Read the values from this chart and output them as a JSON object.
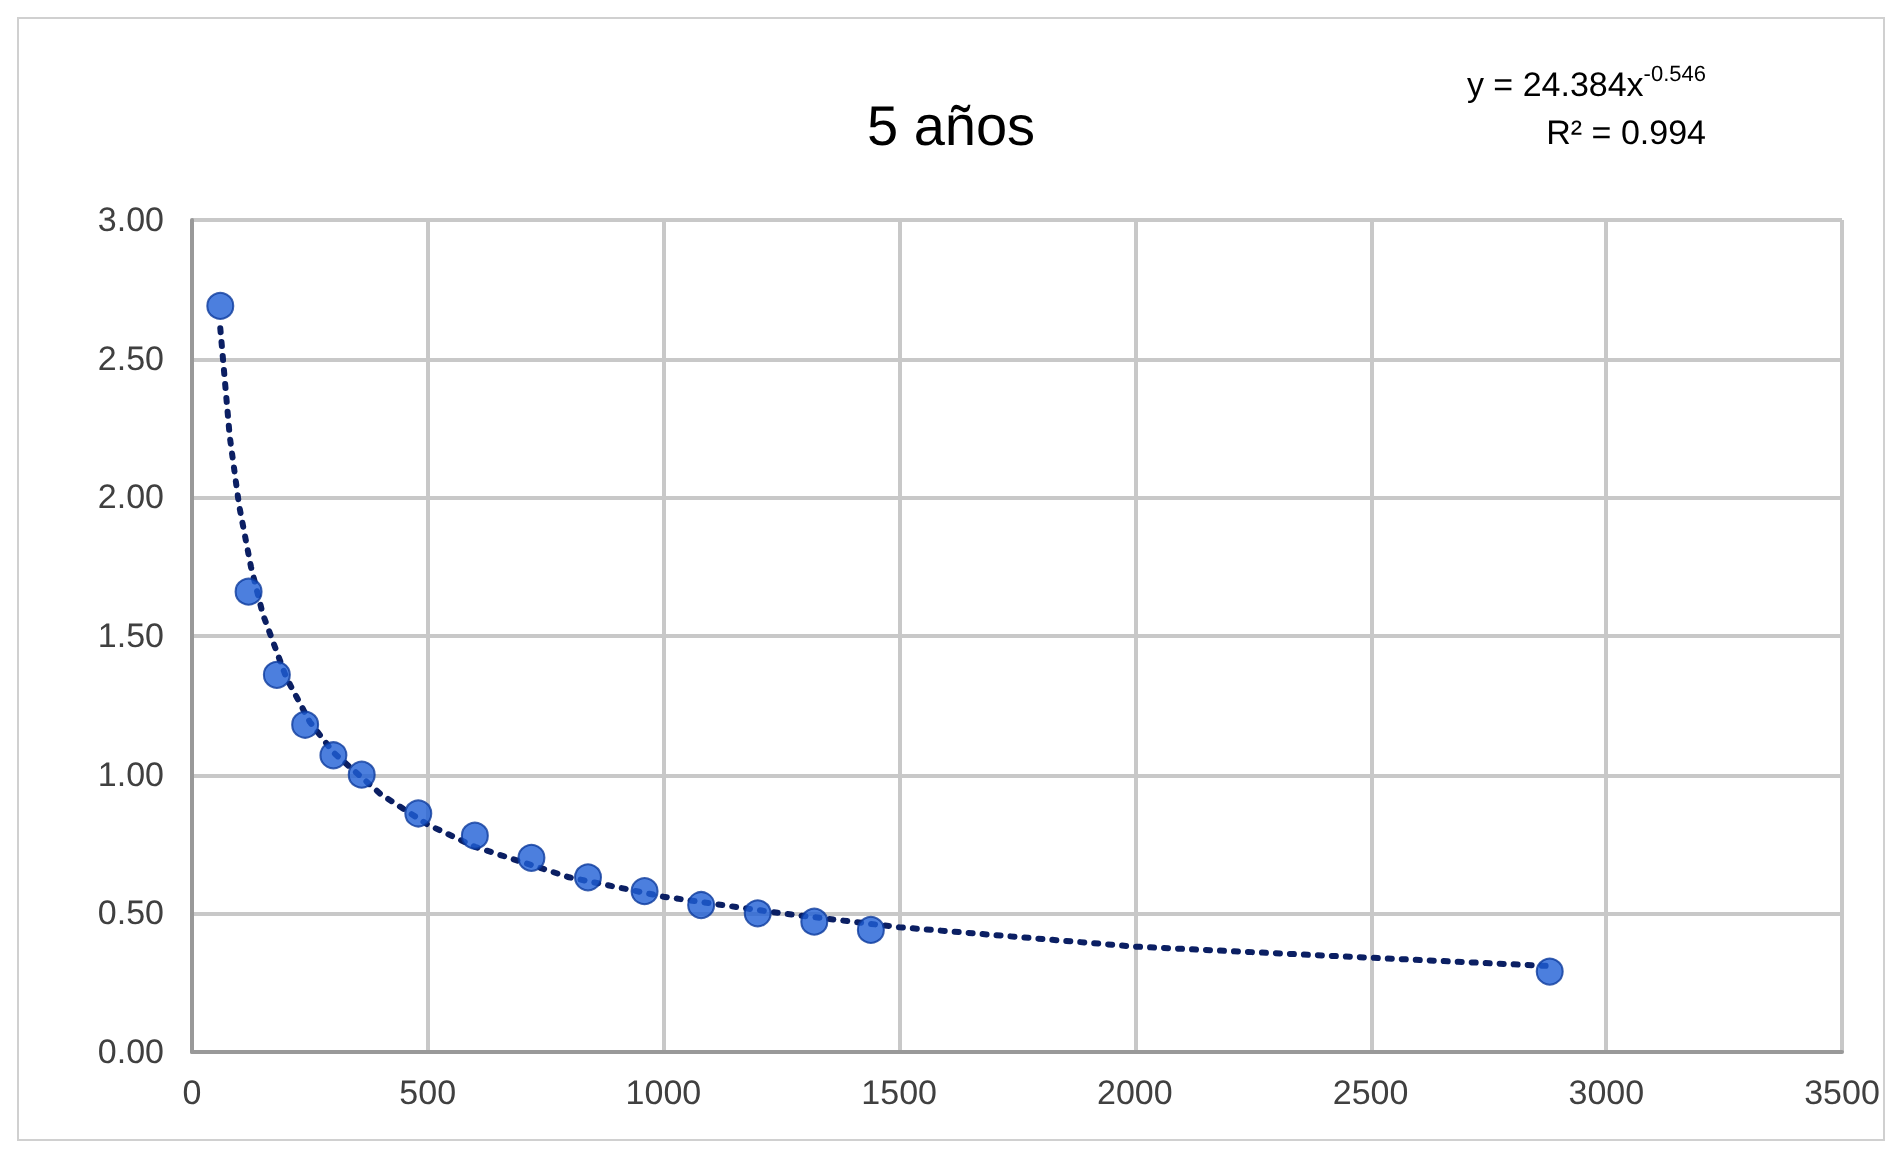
{
  "chart_data": {
    "type": "scatter",
    "title": "5 años",
    "annotations": [
      "y = 24.384x$^{-0.546}$",
      "R² = 0.994"
    ],
    "series": [
      {
        "color": "#1f5fd6",
        "marker": "circle",
        "x": [
          60,
          120,
          180,
          240,
          300,
          360,
          480,
          600,
          720,
          840,
          960,
          1080,
          1200,
          1320,
          1440,
          2880
        ],
        "values": [
          2.69,
          1.66,
          1.36,
          1.18,
          1.07,
          1.0,
          0.86,
          0.78,
          0.7,
          0.63,
          0.58,
          0.53,
          0.5,
          0.47,
          0.44,
          0.29
        ]
      },
      {
        "type": "line",
        "color": "#0b1f63",
        "line_style": "dotted",
        "marker": "none",
        "x": [
          60,
          80,
          100,
          125,
          150,
          200,
          250,
          300,
          400,
          500,
          600,
          800,
          1000,
          1250,
          1500,
          2000,
          2500,
          2880
        ],
        "values": [
          2.61,
          2.22,
          1.97,
          1.75,
          1.58,
          1.35,
          1.19,
          1.08,
          0.93,
          0.82,
          0.74,
          0.63,
          0.56,
          0.5,
          0.45,
          0.38,
          0.34,
          0.31
        ]
      }
    ],
    "xlim": [
      0,
      3500
    ],
    "xticks": [
      0,
      500,
      1000,
      1500,
      2000,
      2500,
      3000,
      3500
    ],
    "ylim": [
      0,
      3
    ],
    "yticks": [
      {
        "value": 0,
        "label": "0.00"
      },
      {
        "value": 0.5,
        "label": "0.50"
      },
      {
        "value": 1,
        "label": "1.00"
      },
      {
        "value": 1.5,
        "label": "1.50"
      },
      {
        "value": 2,
        "label": "2.00"
      },
      {
        "value": 2.5,
        "label": "2.50"
      },
      {
        "value": 3,
        "label": "3.00"
      }
    ],
    "grid": true
  }
}
